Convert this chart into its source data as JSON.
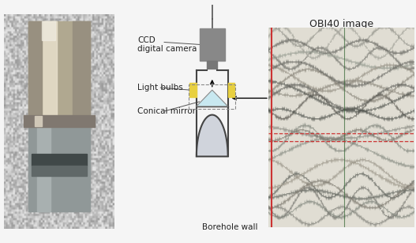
{
  "background_color": "#f5f5f5",
  "labels": {
    "ccd": "CCD\ndigital camera",
    "light_bulbs": "Light bulbs",
    "conical_mirror": "Conical mirror",
    "borehole_wall": "Borehole wall",
    "obi40_image": "OBI40 image"
  },
  "colors": {
    "device_outline": "#444444",
    "camera_body": "#888888",
    "light_bulb": "#e8d040",
    "mirror_fill": "#c8e8f0",
    "mirror_outline": "#999999",
    "bottom_fill": "#d0d4dc",
    "vertical_line_red": "#cc3333",
    "arrow_color": "#000000",
    "text_color": "#222222",
    "wire_color": "#555555",
    "label_line": "#555555"
  }
}
